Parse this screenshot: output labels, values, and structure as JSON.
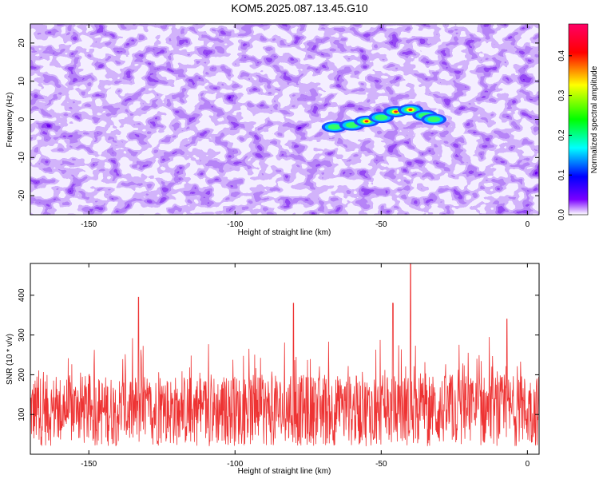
{
  "title": "KOM5.2025.087.13.45.G10",
  "chart_data": [
    {
      "type": "heatmap",
      "xlabel": "Height of straight line (km)",
      "ylabel": "Frequency (Hz)",
      "xlim": [
        -170,
        4
      ],
      "ylim": [
        -25,
        25
      ],
      "xticks": [
        -150,
        -100,
        -50,
        0
      ],
      "yticks": [
        -20,
        -10,
        0,
        10,
        20
      ],
      "colorbar": {
        "label": "Normalized spectral amplitude",
        "range": [
          0,
          0.48
        ],
        "ticks": [
          0.0,
          0.1,
          0.2,
          0.3,
          0.4
        ],
        "colors": [
          "#ffffff",
          "#7a00ff",
          "#0000ff",
          "#00ffff",
          "#00ff00",
          "#ffff00",
          "#ff0000",
          "#ff0066"
        ]
      },
      "ridge": {
        "description_points": [
          [
            -66,
            -2
          ],
          [
            -60,
            -1.5
          ],
          [
            -55,
            -0.5
          ],
          [
            -50,
            0.5
          ],
          [
            -45,
            2
          ],
          [
            -40,
            2.5
          ],
          [
            -35,
            1
          ],
          [
            -32,
            0
          ]
        ]
      }
    },
    {
      "type": "line",
      "xlabel": "Height of straight line (km)",
      "ylabel": "SNR (10 * v/v)",
      "xlim": [
        -170,
        4
      ],
      "ylim": [
        0,
        480
      ],
      "xticks": [
        -150,
        -100,
        -50,
        0
      ],
      "yticks": [
        100,
        200,
        300,
        400
      ],
      "color": "#ee3333",
      "peaks": [
        [
          -40,
          480
        ],
        [
          -46,
          380
        ],
        [
          -80,
          380
        ],
        [
          -133,
          395
        ],
        [
          -7,
          340
        ]
      ]
    }
  ]
}
